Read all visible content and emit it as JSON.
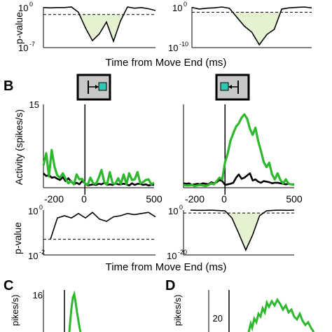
{
  "colors": {
    "green": "#2db82d",
    "black": "#000000",
    "shade": "#e4f2d2",
    "icon_bg": "#c8c8c8",
    "cyan": "#2ec8b4"
  },
  "panel_labels": {
    "B": "B",
    "C": "C",
    "D": "D"
  },
  "shared_xlabels": {
    "top": "Time from Move End (ms)",
    "middle": "Time from Move End (ms)"
  },
  "chart_data": [
    {
      "id": "top-left-pvalue",
      "type": "line",
      "ylabel": "p-value",
      "ytick_labels": [
        "10^0",
        "10^-7"
      ],
      "ylim_log10": [
        -7,
        0
      ],
      "threshold_log10": -1.3,
      "x": [
        -300,
        -250,
        -200,
        -150,
        -100,
        -50,
        0,
        50,
        100,
        150,
        200,
        250,
        300,
        350,
        400,
        450,
        500
      ],
      "y_log10": [
        -0.1,
        -0.15,
        -0.1,
        -0.1,
        0,
        -0.9,
        -3.6,
        -5.8,
        -4.6,
        -2.6,
        -5.9,
        -2.4,
        0,
        -0.2,
        -0.1,
        -0.3,
        -0.6
      ]
    },
    {
      "id": "top-right-pvalue",
      "type": "line",
      "ytick_labels": [
        "10^0",
        "10^-10"
      ],
      "ylim_log10": [
        -10,
        0
      ],
      "threshold_log10": -1.3,
      "x": [
        -300,
        -250,
        -200,
        -150,
        -100,
        -50,
        0,
        50,
        100,
        150,
        200,
        250,
        300,
        350,
        400,
        450,
        500
      ],
      "y_log10": [
        -0.1,
        -0.5,
        -0.3,
        -0.2,
        0,
        -0.3,
        -2.5,
        -4.7,
        -6.2,
        -9.3,
        -6.8,
        -5.5,
        -0.5,
        -0.2,
        -0.1,
        0,
        -0.2
      ]
    },
    {
      "id": "B-left-activity",
      "type": "line",
      "ylabel": "Activity (spikes/s)",
      "xlim": [
        -300,
        500
      ],
      "ylim": [
        0,
        15
      ],
      "xticks": [
        -200,
        0,
        500
      ],
      "yticks": [
        15
      ],
      "series": [
        {
          "color": "green",
          "x": [
            -300,
            -280,
            -260,
            -240,
            -220,
            -200,
            -180,
            -160,
            -140,
            -120,
            -100,
            -80,
            -60,
            -40,
            -20,
            0,
            20,
            40,
            60,
            80,
            100,
            120,
            140,
            160,
            180,
            200,
            220,
            240,
            260,
            280,
            300,
            320,
            340,
            360,
            380,
            400,
            420,
            440,
            460,
            480,
            500
          ],
          "y": [
            4.0,
            6.2,
            2.0,
            6.8,
            3.8,
            2.2,
            1.8,
            2.6,
            1.6,
            0.8,
            1.2,
            0.6,
            2.4,
            1.5,
            1.6,
            0.8,
            0.5,
            1.8,
            0.8,
            0.7,
            1.8,
            3.2,
            1.0,
            0.6,
            2.8,
            0.8,
            0.7,
            1.7,
            0.7,
            2.4,
            0.6,
            2.6,
            1.4,
            1.5,
            2.8,
            0.8,
            1.0,
            1.4,
            1.5,
            0.6,
            0.9
          ]
        },
        {
          "color": "black",
          "x": [
            -300,
            -280,
            -260,
            -240,
            -220,
            -200,
            -180,
            -160,
            -140,
            -120,
            -100,
            -80,
            -60,
            -40,
            -20,
            0,
            20,
            40,
            60,
            80,
            100,
            120,
            140,
            160,
            180,
            200,
            220,
            240,
            260,
            280,
            300,
            320,
            340,
            360,
            380,
            400,
            420,
            440,
            460,
            480,
            500
          ],
          "y": [
            2.6,
            2.1,
            2.3,
            1.8,
            1.9,
            1.6,
            1.4,
            1.9,
            1.2,
            1.7,
            1.1,
            0.6,
            0.9,
            0.6,
            1.2,
            0.8,
            0.4,
            0.5,
            0.6,
            0.5,
            0.7,
            0.6,
            0.9,
            0.5,
            0.6,
            0.5,
            0.8,
            0.6,
            0.6,
            0.7,
            0.6,
            0.4,
            0.8,
            0.5,
            0.7,
            0.7,
            0.5,
            0.6,
            0.4,
            0.5,
            0.5
          ]
        }
      ]
    },
    {
      "id": "B-right-activity",
      "type": "line",
      "xlim": [
        -300,
        500
      ],
      "ylim": [
        0,
        15
      ],
      "xticks": [
        -200,
        0,
        500
      ],
      "series": [
        {
          "color": "green",
          "x": [
            -300,
            -280,
            -260,
            -240,
            -220,
            -200,
            -180,
            -160,
            -140,
            -120,
            -100,
            -80,
            -60,
            -40,
            -20,
            0,
            20,
            40,
            60,
            80,
            100,
            120,
            140,
            160,
            180,
            200,
            220,
            240,
            260,
            280,
            300,
            320,
            340,
            360,
            380,
            400,
            420,
            440,
            460,
            480,
            500
          ],
          "y": [
            0.5,
            0.4,
            0.4,
            0.5,
            0.3,
            0.4,
            0.5,
            0.4,
            0.3,
            0.5,
            0.8,
            0.6,
            1.2,
            1.8,
            1.5,
            4.6,
            6.2,
            8.5,
            9.8,
            11.0,
            11.6,
            12.6,
            13.2,
            12.4,
            10.6,
            9.5,
            10.8,
            8.4,
            6.6,
            4.6,
            3.7,
            4.5,
            2.4,
            1.5,
            2.6,
            1.4,
            0.8,
            1.5,
            0.7,
            0.6,
            0.5
          ]
        },
        {
          "color": "black",
          "x": [
            -300,
            -280,
            -260,
            -240,
            -220,
            -200,
            -180,
            -160,
            -140,
            -120,
            -100,
            -80,
            -60,
            -40,
            -20,
            0,
            20,
            40,
            60,
            80,
            100,
            120,
            140,
            160,
            180,
            200,
            220,
            240,
            260,
            280,
            300,
            320,
            340,
            360,
            380,
            400,
            420,
            440,
            460,
            480,
            500
          ],
          "y": [
            0.8,
            0.7,
            0.8,
            0.5,
            0.6,
            0.7,
            0.6,
            0.8,
            0.7,
            0.6,
            1.0,
            0.8,
            1.0,
            1.4,
            1.2,
            0.5,
            0.6,
            0.7,
            0.9,
            1.8,
            2.4,
            1.6,
            1.8,
            2.2,
            2.6,
            1.3,
            1.5,
            1.1,
            0.9,
            1.2,
            1.1,
            1.0,
            0.8,
            0.9,
            0.9,
            0.8,
            0.7,
            0.6,
            0.7,
            0.6,
            0.6
          ]
        }
      ]
    },
    {
      "id": "B-left-pvalue",
      "type": "line",
      "ylabel": "p-value",
      "ytick_labels": [
        "10^0",
        "10^-2"
      ],
      "ylim_log10": [
        -2,
        0
      ],
      "threshold_log10": -1.3,
      "x": [
        -250,
        -200,
        -150,
        -100,
        -50,
        0,
        50,
        100,
        150,
        200,
        250,
        300,
        350,
        400,
        450,
        500
      ],
      "y_log10": [
        -1.3,
        -0.35,
        -0.25,
        -0.35,
        -0.15,
        -0.35,
        -0.1,
        -0.4,
        -0.5,
        -0.3,
        -0.25,
        -0.15,
        -0.2,
        -0.15,
        -0.1,
        -0.3
      ]
    },
    {
      "id": "B-right-pvalue",
      "type": "line",
      "ytick_labels": [
        "10^0",
        "10^-20"
      ],
      "ylim_log10": [
        -20,
        0
      ],
      "threshold_log10": -1.3,
      "x": [
        -250,
        -200,
        -150,
        -100,
        -50,
        0,
        50,
        100,
        150,
        200,
        250,
        300,
        350,
        400,
        450,
        500
      ],
      "y_log10": [
        0,
        -0.1,
        -0.1,
        0,
        -0.2,
        -0.3,
        -3.5,
        -10.5,
        -17.8,
        -11,
        -2.5,
        -0.3,
        -0.1,
        0,
        -0.1,
        0
      ]
    },
    {
      "id": "C-activity",
      "type": "line",
      "ylabel_fragment": "pikes/s)",
      "ytick_labels": [
        "16"
      ]
    },
    {
      "id": "D-activity",
      "type": "line",
      "ylabel_fragment": "pikes/s)",
      "ytick_labels": [
        "20"
      ]
    }
  ]
}
